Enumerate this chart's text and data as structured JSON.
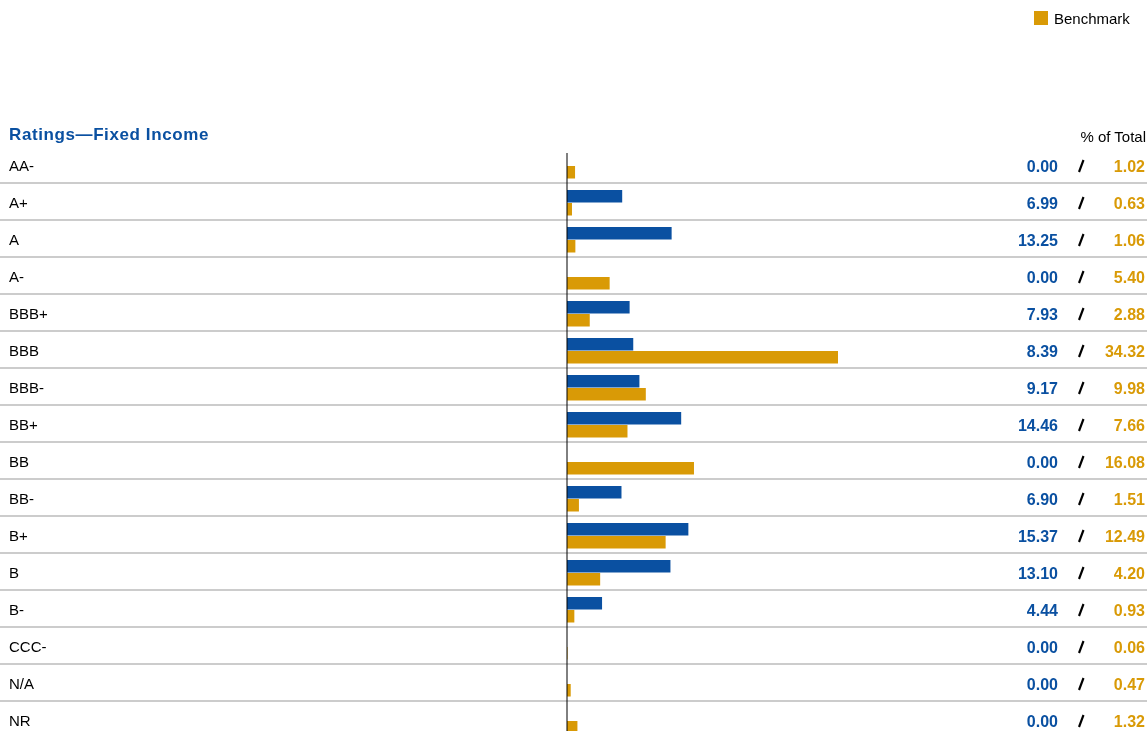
{
  "chart_data": {
    "type": "bar",
    "orientation": "horizontal",
    "title": "Ratings—Fixed Income",
    "annotations": [
      "% of Total"
    ],
    "categories": [
      "AA-",
      "A+",
      "A",
      "A-",
      "BBB+",
      "BBB",
      "BBB-",
      "BB+",
      "BB",
      "BB-",
      "B+",
      "B",
      "B-",
      "CCC-",
      "N/A",
      "NR"
    ],
    "series": [
      {
        "color": "#0a50a1",
        "values": [
          0.0,
          6.99,
          13.25,
          0.0,
          7.93,
          8.39,
          9.17,
          14.46,
          0.0,
          6.9,
          15.37,
          13.1,
          4.44,
          0.0,
          0.0,
          0.0
        ],
        "value_labels": [
          "0.00",
          "6.99",
          "13.25",
          "0.00",
          "7.93",
          "8.39",
          "9.17",
          "14.46",
          "0.00",
          "6.90",
          "15.37",
          "13.10",
          "4.44",
          "0.00",
          "0.00",
          "0.00"
        ]
      },
      {
        "name": "Benchmark",
        "color": "#d99a06",
        "values": [
          1.02,
          0.63,
          1.06,
          5.4,
          2.88,
          34.32,
          9.98,
          7.66,
          16.08,
          1.51,
          12.49,
          4.2,
          0.93,
          0.06,
          0.47,
          1.32
        ],
        "value_labels": [
          "1.02",
          "0.63",
          "1.06",
          "5.40",
          "2.88",
          "34.32",
          "9.98",
          "7.66",
          "16.08",
          "1.51",
          "12.49",
          "4.20",
          "0.93",
          "0.06",
          "0.47",
          "1.32"
        ]
      }
    ],
    "legend": "top right"
  }
}
